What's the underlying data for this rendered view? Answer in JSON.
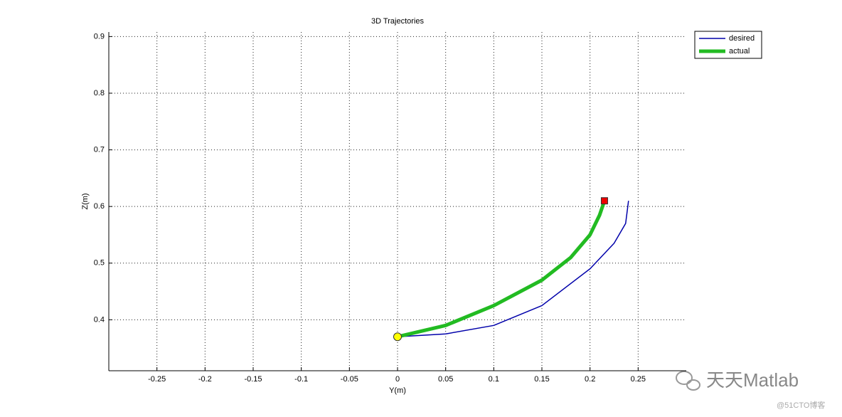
{
  "chart_data": {
    "type": "line",
    "title": "3D Trajectories",
    "xlabel": "Y(m)",
    "ylabel": "Z(m)",
    "xlim": [
      -0.3,
      0.3
    ],
    "ylim": [
      0.31,
      0.908
    ],
    "xticks": [
      -0.25,
      -0.2,
      -0.15,
      -0.1,
      -0.05,
      0,
      0.05,
      0.1,
      0.15,
      0.2,
      0.25
    ],
    "yticks": [
      0.4,
      0.5,
      0.6,
      0.7,
      0.8,
      0.9
    ],
    "grid": true,
    "legend": "outside-northeast",
    "series": [
      {
        "name": "desired",
        "color": "#0000aa",
        "width": 1.5,
        "x": [
          0,
          0.05,
          0.1,
          0.15,
          0.2,
          0.225,
          0.237,
          0.24
        ],
        "values": [
          0.37,
          0.375,
          0.39,
          0.425,
          0.49,
          0.535,
          0.57,
          0.61
        ]
      },
      {
        "name": "actual",
        "color": "#22bb22",
        "width": 5,
        "x": [
          0,
          0.05,
          0.1,
          0.15,
          0.18,
          0.2,
          0.21,
          0.215
        ],
        "values": [
          0.37,
          0.39,
          0.425,
          0.47,
          0.51,
          0.55,
          0.585,
          0.61
        ]
      }
    ],
    "markers": [
      {
        "x": 0,
        "y": 0.37,
        "shape": "circle",
        "color": "#ffff00"
      },
      {
        "x": 0.215,
        "y": 0.61,
        "shape": "square",
        "color": "#ee0000"
      }
    ],
    "watermark": [
      "天天Matlab",
      "@51CTO博客"
    ]
  }
}
